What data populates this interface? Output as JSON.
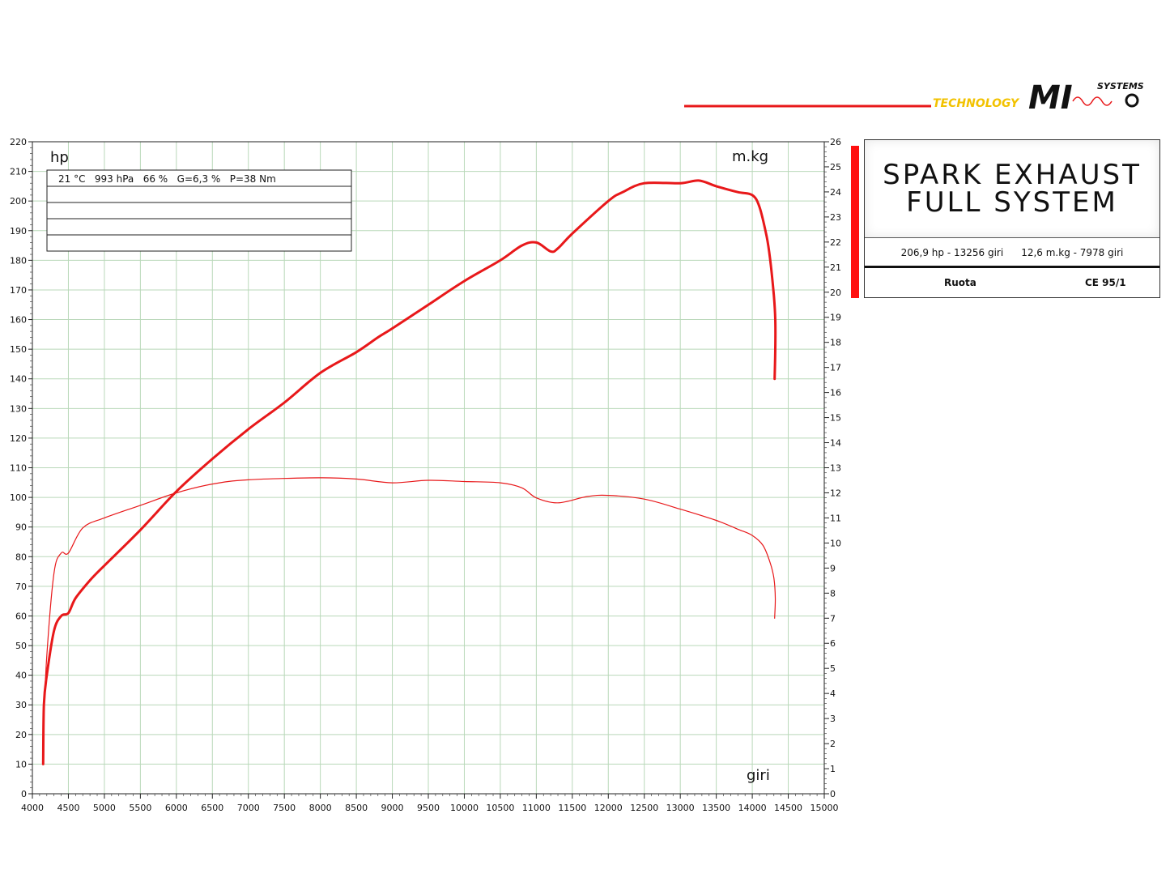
{
  "colors": {
    "curve": "#e8181a",
    "grid": "#b9d8b9",
    "accent_bar": "#ff1010",
    "logo_line": "#e8181a"
  },
  "logo": {
    "technology": "TECHNOLOGY",
    "mark": "MI",
    "systems": "SYSTEMS"
  },
  "info": {
    "title_line1": "SPARK EXHAUST",
    "title_line2": "FULL SYSTEM",
    "power_peak": "206,9 hp - 13256 giri",
    "torque_peak": "12,6 m.kg - 7978 giri",
    "measurement": "Ruota",
    "standard": "CE 95/1"
  },
  "conditions": {
    "text": "21 °C   993 hPa   66 %   G=6,3 %   P=38 Nm",
    "empty_rows": [
      "",
      "",
      "",
      ""
    ]
  },
  "chart_data": {
    "type": "line",
    "xlabel": "giri",
    "ylabel_left": "hp",
    "ylabel_right": "m.kg",
    "xlim": [
      4000,
      15000
    ],
    "ylim_left": [
      0,
      220
    ],
    "ylim_right": [
      0,
      26
    ],
    "grid": true,
    "x_ticks": [
      4000,
      4500,
      5000,
      5500,
      6000,
      6500,
      7000,
      7500,
      8000,
      8500,
      9000,
      9500,
      10000,
      10500,
      11000,
      11500,
      12000,
      12500,
      13000,
      13500,
      14000,
      14500,
      15000
    ],
    "y_ticks_left": [
      0,
      10,
      20,
      30,
      40,
      50,
      60,
      70,
      80,
      90,
      100,
      110,
      120,
      130,
      140,
      150,
      160,
      170,
      180,
      190,
      200,
      210,
      220
    ],
    "y_ticks_right": [
      0,
      1,
      2,
      3,
      4,
      5,
      6,
      7,
      8,
      9,
      10,
      11,
      12,
      13,
      14,
      15,
      16,
      17,
      18,
      19,
      20,
      21,
      22,
      23,
      24,
      25,
      26
    ],
    "series": [
      {
        "axis": "left",
        "points": [
          [
            4150,
            10
          ],
          [
            4160,
            30
          ],
          [
            4200,
            40
          ],
          [
            4300,
            55
          ],
          [
            4400,
            60
          ],
          [
            4500,
            61
          ],
          [
            4600,
            66
          ],
          [
            4800,
            72
          ],
          [
            5000,
            77
          ],
          [
            5500,
            89
          ],
          [
            6000,
            102
          ],
          [
            6500,
            113
          ],
          [
            7000,
            123
          ],
          [
            7500,
            132
          ],
          [
            8000,
            142
          ],
          [
            8500,
            149
          ],
          [
            8800,
            154
          ],
          [
            9000,
            157
          ],
          [
            9500,
            165
          ],
          [
            10000,
            173
          ],
          [
            10500,
            180
          ],
          [
            10800,
            185
          ],
          [
            11000,
            186
          ],
          [
            11200,
            183
          ],
          [
            11300,
            184
          ],
          [
            11500,
            189
          ],
          [
            12000,
            200
          ],
          [
            12200,
            203
          ],
          [
            12500,
            206
          ],
          [
            13000,
            206
          ],
          [
            13256,
            206.9
          ],
          [
            13500,
            205
          ],
          [
            13800,
            203
          ],
          [
            14000,
            202
          ],
          [
            14100,
            198
          ],
          [
            14200,
            188
          ],
          [
            14250,
            180
          ],
          [
            14300,
            168
          ],
          [
            14320,
            160
          ],
          [
            14320,
            150
          ],
          [
            14310,
            140
          ]
        ]
      },
      {
        "axis": "right",
        "points": [
          [
            4150,
            2.5
          ],
          [
            4200,
            5.5
          ],
          [
            4300,
            8.8
          ],
          [
            4400,
            9.6
          ],
          [
            4500,
            9.6
          ],
          [
            4700,
            10.6
          ],
          [
            5000,
            11.0
          ],
          [
            5500,
            11.5
          ],
          [
            6000,
            12.0
          ],
          [
            6500,
            12.35
          ],
          [
            7000,
            12.52
          ],
          [
            7978,
            12.6
          ],
          [
            8500,
            12.55
          ],
          [
            9000,
            12.4
          ],
          [
            9500,
            12.5
          ],
          [
            10000,
            12.45
          ],
          [
            10500,
            12.4
          ],
          [
            10800,
            12.2
          ],
          [
            11000,
            11.8
          ],
          [
            11300,
            11.6
          ],
          [
            11700,
            11.85
          ],
          [
            12000,
            11.9
          ],
          [
            12500,
            11.75
          ],
          [
            13000,
            11.35
          ],
          [
            13500,
            10.9
          ],
          [
            13800,
            10.55
          ],
          [
            14000,
            10.3
          ],
          [
            14150,
            9.9
          ],
          [
            14250,
            9.2
          ],
          [
            14300,
            8.6
          ],
          [
            14320,
            7.8
          ],
          [
            14310,
            7.0
          ]
        ]
      }
    ]
  }
}
